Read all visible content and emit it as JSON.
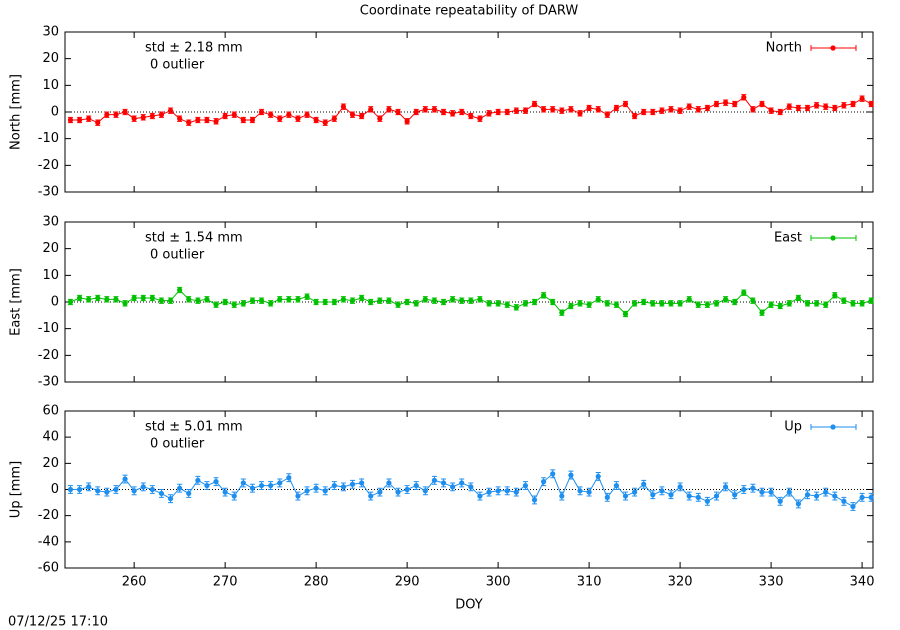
{
  "title": "Coordinate repeatability of DARW",
  "timestamp": "07/12/25 17:10",
  "chart_data": [
    {
      "type": "line",
      "y_label": "North [mm]",
      "annotations": [
        "std ± 2.18 mm",
        "0 outlier"
      ],
      "legend": "upper right",
      "xlim": [
        252.4,
        341.2
      ],
      "xticks": [
        260,
        270,
        280,
        290,
        300,
        310,
        320,
        330,
        340
      ],
      "ylim": [
        -30,
        30
      ],
      "yticks": [
        -30,
        -20,
        -10,
        0,
        10,
        20,
        30
      ],
      "x": [
        253,
        254,
        255,
        256,
        257,
        258,
        259,
        260,
        261,
        262,
        263,
        264,
        265,
        266,
        267,
        268,
        269,
        270,
        271,
        272,
        273,
        274,
        275,
        276,
        277,
        278,
        279,
        280,
        281,
        282,
        283,
        284,
        285,
        286,
        287,
        288,
        289,
        290,
        291,
        292,
        293,
        294,
        295,
        296,
        297,
        298,
        299,
        300,
        301,
        302,
        303,
        304,
        305,
        306,
        307,
        308,
        309,
        310,
        311,
        312,
        313,
        314,
        315,
        316,
        317,
        318,
        319,
        320,
        321,
        322,
        323,
        324,
        325,
        326,
        327,
        328,
        329,
        330,
        331,
        332,
        333,
        334,
        335,
        336,
        337,
        338,
        339,
        340,
        341
      ],
      "series": [
        {
          "name": "North",
          "color": "#ff0000",
          "error": 1,
          "values": [
            -3,
            -3,
            -2.5,
            -4,
            -1,
            -1,
            0,
            -2.5,
            -2,
            -1.5,
            -1,
            0.5,
            -2.5,
            -4,
            -3,
            -3,
            -3.5,
            -1.5,
            -1,
            -3,
            -3,
            0,
            -1,
            -2.5,
            -1,
            -2.5,
            -1,
            -3,
            -4,
            -2.5,
            2,
            -1,
            -1.5,
            1,
            -2.5,
            1,
            0,
            -3.5,
            0,
            1,
            1,
            0,
            -0.5,
            0,
            -1.5,
            -2.5,
            -0.5,
            0,
            0,
            0.5,
            0.5,
            3,
            1,
            1,
            0.5,
            1,
            -0.5,
            1.5,
            1,
            -1,
            1.5,
            3,
            -1.5,
            0,
            0,
            0.5,
            1,
            0.5,
            2,
            1,
            1.5,
            3,
            3.5,
            3,
            5.5,
            1,
            3,
            0.5,
            0,
            2,
            1.5,
            1.5,
            2.5,
            2,
            1.5,
            2.5,
            3,
            5,
            3
          ]
        }
      ]
    },
    {
      "type": "line",
      "y_label": "East [mm]",
      "annotations": [
        "std ± 1.54 mm",
        "0 outlier"
      ],
      "legend": "upper right",
      "xlim": [
        252.4,
        341.2
      ],
      "xticks": [
        260,
        270,
        280,
        290,
        300,
        310,
        320,
        330,
        340
      ],
      "ylim": [
        -30,
        30
      ],
      "yticks": [
        -30,
        -20,
        -10,
        0,
        10,
        20,
        30
      ],
      "x": [
        253,
        254,
        255,
        256,
        257,
        258,
        259,
        260,
        261,
        262,
        263,
        264,
        265,
        266,
        267,
        268,
        269,
        270,
        271,
        272,
        273,
        274,
        275,
        276,
        277,
        278,
        279,
        280,
        281,
        282,
        283,
        284,
        285,
        286,
        287,
        288,
        289,
        290,
        291,
        292,
        293,
        294,
        295,
        296,
        297,
        298,
        299,
        300,
        301,
        302,
        303,
        304,
        305,
        306,
        307,
        308,
        309,
        310,
        311,
        312,
        313,
        314,
        315,
        316,
        317,
        318,
        319,
        320,
        321,
        322,
        323,
        324,
        325,
        326,
        327,
        328,
        329,
        330,
        331,
        332,
        333,
        334,
        335,
        336,
        337,
        338,
        339,
        340,
        341
      ],
      "series": [
        {
          "name": "East",
          "color": "#00c000",
          "error": 1,
          "values": [
            0,
            1.5,
            1,
            1.5,
            1,
            1,
            -0.5,
            1.5,
            1.5,
            1.5,
            0.5,
            0.5,
            4.5,
            1,
            0.5,
            1,
            -1,
            0,
            -1,
            -0.5,
            0.5,
            0.5,
            -0.5,
            1,
            1,
            1,
            2,
            0,
            0,
            0,
            1,
            0.5,
            1.5,
            0,
            0.5,
            0.5,
            -1,
            0,
            -0.5,
            1,
            0.5,
            0,
            1,
            0.5,
            0.5,
            1,
            -0.5,
            -0.5,
            -1,
            -2,
            -0.5,
            0,
            2.5,
            0,
            -4,
            -1.5,
            -0.5,
            -1,
            1,
            -0.5,
            -1,
            -4.5,
            -0.5,
            0,
            -0.5,
            -0.5,
            -0.5,
            -0.5,
            1,
            -1,
            -1,
            -0.5,
            1,
            0,
            3.5,
            0.5,
            -4,
            -1,
            -1.5,
            -0.5,
            1.5,
            -0.5,
            -0.5,
            -1,
            2.5,
            0.5,
            -0.5,
            -0.5,
            0.5
          ]
        }
      ]
    },
    {
      "type": "line",
      "y_label": "Up [mm]",
      "x_label": "DOY",
      "annotations": [
        "std ± 5.01 mm",
        "0 outlier"
      ],
      "legend": "upper right",
      "xlim": [
        252.4,
        341.2
      ],
      "xticks": [
        260,
        270,
        280,
        290,
        300,
        310,
        320,
        330,
        340
      ],
      "ylim": [
        -60,
        60
      ],
      "yticks": [
        -60,
        -40,
        -20,
        0,
        20,
        40,
        60
      ],
      "x": [
        253,
        254,
        255,
        256,
        257,
        258,
        259,
        260,
        261,
        262,
        263,
        264,
        265,
        266,
        267,
        268,
        269,
        270,
        271,
        272,
        273,
        274,
        275,
        276,
        277,
        278,
        279,
        280,
        281,
        282,
        283,
        284,
        285,
        286,
        287,
        288,
        289,
        290,
        291,
        292,
        293,
        294,
        295,
        296,
        297,
        298,
        299,
        300,
        301,
        302,
        303,
        304,
        305,
        306,
        307,
        308,
        309,
        310,
        311,
        312,
        313,
        314,
        315,
        316,
        317,
        318,
        319,
        320,
        321,
        322,
        323,
        324,
        325,
        326,
        327,
        328,
        329,
        330,
        331,
        332,
        333,
        334,
        335,
        336,
        337,
        338,
        339,
        340,
        341
      ],
      "series": [
        {
          "name": "Up",
          "color": "#1e8fef",
          "error": 3,
          "values": [
            0,
            0,
            2,
            -1,
            -2,
            0,
            8,
            -1,
            2,
            0,
            -3,
            -7,
            1,
            -3,
            7,
            3,
            6,
            -2,
            -5,
            5,
            1,
            3,
            3,
            5,
            9,
            -5,
            -1,
            1,
            -1,
            3,
            2,
            4,
            5,
            -5,
            -2,
            5,
            -2,
            0,
            3,
            -1,
            7,
            5,
            2,
            5,
            2,
            -5,
            -2,
            -1,
            -1,
            -2,
            3,
            -8,
            6,
            12,
            -5,
            11,
            -1,
            -2,
            10,
            -6,
            3,
            -5,
            -2,
            4,
            -4,
            -1,
            -4,
            2,
            -5,
            -6,
            -9,
            -5,
            2,
            -4,
            0,
            1,
            -2,
            -2,
            -9,
            -2,
            -11,
            -4,
            -5,
            -2,
            -5,
            -9,
            -13,
            -6,
            -6
          ]
        }
      ]
    }
  ]
}
